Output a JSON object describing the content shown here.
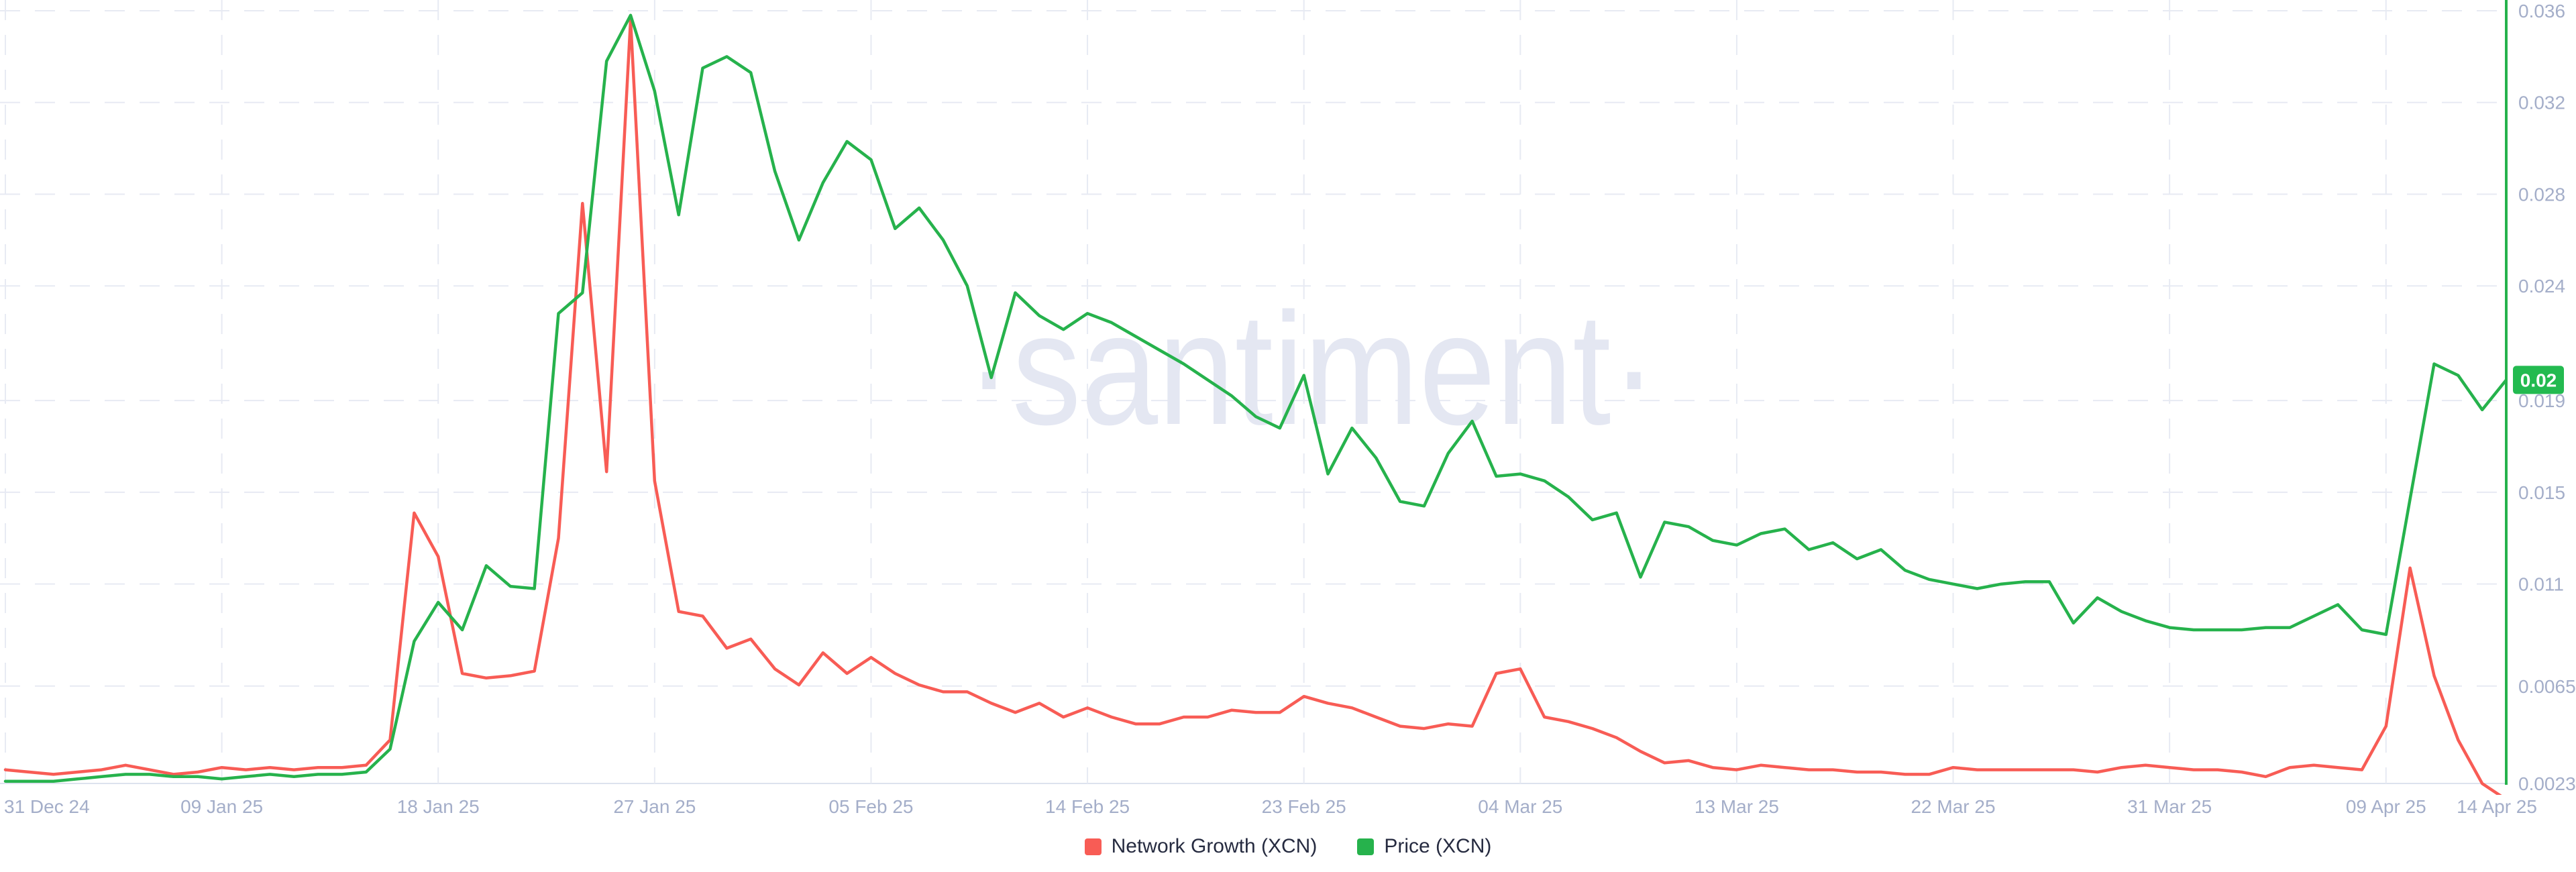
{
  "chart_data": {
    "type": "line",
    "title": "",
    "watermark": "·santiment·",
    "grid": true,
    "legend_position": "bottom-center",
    "x_axis": {
      "start": "31 Dec 24",
      "end": "14 Apr 25",
      "total_days": 104,
      "tick_days": [
        0,
        9,
        18,
        27,
        36,
        45,
        54,
        63,
        72,
        81,
        90,
        99,
        104
      ],
      "tick_labels": [
        "31 Dec 24",
        "09 Jan 25",
        "18 Jan 25",
        "27 Jan 25",
        "05 Feb 25",
        "14 Feb 25",
        "23 Feb 25",
        "04 Mar 25",
        "13 Mar 25",
        "22 Mar 25",
        "31 Mar 25",
        "09 Apr 25",
        "14 Apr 25"
      ]
    },
    "y_axis": {
      "side": "right",
      "min": 0.002303,
      "max": 0.036,
      "tick_values": [
        0.036,
        0.032,
        0.028,
        0.024,
        0.019,
        0.015,
        0.011,
        0.006551,
        0.002303
      ],
      "tick_labels": [
        "0.036",
        "0.032",
        "0.028",
        "0.024",
        "0.019",
        "0.015",
        "0.011",
        "0.006551",
        "0.002303"
      ],
      "current_badge": {
        "label": "0.02",
        "value": 0.0199
      }
    },
    "series": [
      {
        "name": "Network Growth (XCN)",
        "color": "#f85c55",
        "note": "plotted against hidden scale; values below are price-axis equivalents read from pixels",
        "values": [
          0.0029,
          0.0028,
          0.0027,
          0.0028,
          0.0029,
          0.0031,
          0.0029,
          0.0027,
          0.0028,
          0.003,
          0.0029,
          0.003,
          0.0029,
          0.003,
          0.003,
          0.0031,
          0.0042,
          0.0141,
          0.0122,
          0.0071,
          0.0069,
          0.007,
          0.0072,
          0.013,
          0.0276,
          0.0159,
          0.0356,
          0.0155,
          0.0098,
          0.0096,
          0.0082,
          0.0086,
          0.0073,
          0.0066,
          0.008,
          0.0071,
          0.0078,
          0.0071,
          0.0066,
          0.0063,
          0.0063,
          0.0058,
          0.0054,
          0.0058,
          0.0052,
          0.0056,
          0.0052,
          0.0049,
          0.0049,
          0.0052,
          0.0052,
          0.0055,
          0.0054,
          0.0054,
          0.0061,
          0.0058,
          0.0056,
          0.0052,
          0.0048,
          0.0047,
          0.0049,
          0.0048,
          0.0071,
          0.0073,
          0.0052,
          0.005,
          0.0047,
          0.0043,
          0.0037,
          0.0032,
          0.0033,
          0.003,
          0.0029,
          0.0031,
          0.003,
          0.0029,
          0.0029,
          0.0028,
          0.0028,
          0.0027,
          0.0027,
          0.003,
          0.0029,
          0.0029,
          0.0029,
          0.0029,
          0.0029,
          0.0028,
          0.003,
          0.0031,
          0.003,
          0.0029,
          0.0029,
          0.0028,
          0.0026,
          0.003,
          0.0031,
          0.003,
          0.0029,
          0.0048,
          0.0117,
          0.007,
          0.0042,
          0.0023,
          0.0016
        ]
      },
      {
        "name": "Price (XCN)",
        "color": "#26b24c",
        "values": [
          0.0024,
          0.0024,
          0.0024,
          0.0025,
          0.0026,
          0.0027,
          0.0027,
          0.0026,
          0.0026,
          0.0025,
          0.0026,
          0.0027,
          0.0026,
          0.0027,
          0.0027,
          0.0028,
          0.0038,
          0.0085,
          0.0102,
          0.009,
          0.0118,
          0.0109,
          0.0108,
          0.0228,
          0.0237,
          0.0338,
          0.0358,
          0.0325,
          0.0271,
          0.0335,
          0.034,
          0.0333,
          0.029,
          0.026,
          0.0285,
          0.0303,
          0.0295,
          0.0265,
          0.0274,
          0.026,
          0.024,
          0.02,
          0.0237,
          0.0227,
          0.0221,
          0.0228,
          0.0224,
          0.0218,
          0.0212,
          0.0206,
          0.0199,
          0.0192,
          0.0183,
          0.0178,
          0.0201,
          0.0158,
          0.0178,
          0.0165,
          0.0146,
          0.0144,
          0.0167,
          0.0181,
          0.0157,
          0.0158,
          0.0155,
          0.0148,
          0.0138,
          0.0141,
          0.0113,
          0.0137,
          0.0135,
          0.0129,
          0.0127,
          0.0132,
          0.0134,
          0.0125,
          0.0128,
          0.0121,
          0.0125,
          0.0116,
          0.0112,
          0.011,
          0.0108,
          0.011,
          0.0111,
          0.0111,
          0.0093,
          0.0104,
          0.0098,
          0.0094,
          0.0091,
          0.009,
          0.009,
          0.009,
          0.0091,
          0.0091,
          0.0096,
          0.0101,
          0.009,
          0.0088,
          0.0147,
          0.0206,
          0.0201,
          0.0186,
          0.0199
        ]
      }
    ],
    "colors": {
      "grid": "#e7eaf3",
      "axis_bottom_line": "#dde2ee",
      "axis_text": "#a4aec9",
      "legend_text": "#262b40",
      "watermark": "#e4e7f2",
      "badge_bg": "#23ba50",
      "badge_text": "#ffffff"
    }
  }
}
